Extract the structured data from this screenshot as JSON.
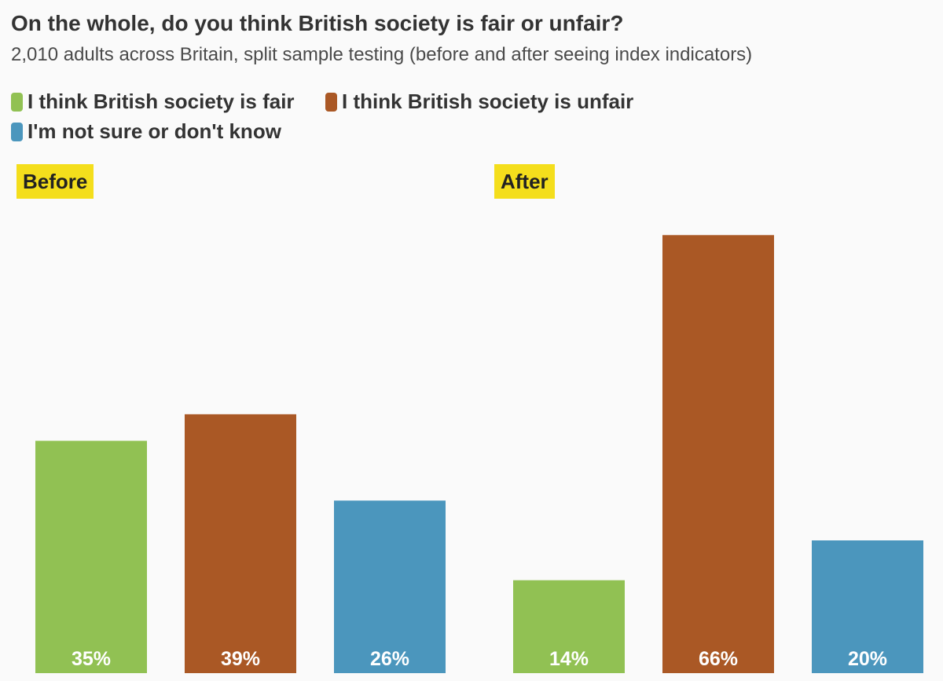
{
  "chart_data": {
    "type": "bar",
    "title": "On the whole, do you think British society is fair or unfair?",
    "subtitle": "2,010 adults across Britain, split sample testing (before and after seeing index indicators)",
    "legend": [
      {
        "name": "I think British society is fair",
        "color": "#91c153"
      },
      {
        "name": "I think British society is unfair",
        "color": "#aa5825"
      },
      {
        "name": "I'm not sure or don't know",
        "color": "#4b96bd"
      }
    ],
    "panels": [
      {
        "label": "Before",
        "values": [
          35,
          39,
          26
        ],
        "value_labels": [
          "35%",
          "39%",
          "26%"
        ]
      },
      {
        "label": "After",
        "values": [
          14,
          66,
          20
        ],
        "value_labels": [
          "14%",
          "66%",
          "20%"
        ]
      }
    ],
    "ylim": [
      0,
      70
    ],
    "grid": false,
    "xlabel": "",
    "ylabel": ""
  }
}
